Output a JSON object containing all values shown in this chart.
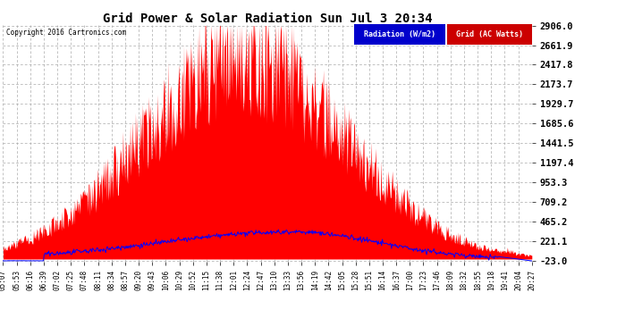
{
  "title": "Grid Power & Solar Radiation Sun Jul 3 20:34",
  "copyright": "Copyright 2016 Cartronics.com",
  "yticks": [
    2906.0,
    2661.9,
    2417.8,
    2173.7,
    1929.7,
    1685.6,
    1441.5,
    1197.4,
    953.3,
    709.2,
    465.2,
    221.1,
    -23.0
  ],
  "ymin": -23.0,
  "ymax": 2906.0,
  "radiation_color": "#FF0000",
  "grid_line_color": "#0000FF",
  "background_color": "#FFFFFF",
  "plot_bg_color": "#FFFFFF",
  "grid_color": "#AAAAAA",
  "legend_radiation_bg": "#0000CC",
  "legend_grid_bg": "#CC0000",
  "xtick_labels": [
    "05:07",
    "05:53",
    "06:16",
    "06:39",
    "07:02",
    "07:25",
    "07:48",
    "08:11",
    "08:34",
    "08:57",
    "09:20",
    "09:43",
    "10:06",
    "10:29",
    "10:52",
    "11:15",
    "11:38",
    "12:01",
    "12:24",
    "12:47",
    "13:10",
    "13:33",
    "13:56",
    "14:19",
    "14:42",
    "15:05",
    "15:28",
    "15:51",
    "16:14",
    "16:37",
    "17:00",
    "17:23",
    "17:46",
    "18:09",
    "18:32",
    "18:55",
    "19:18",
    "19:41",
    "20:04",
    "20:27"
  ],
  "n_points": 800
}
